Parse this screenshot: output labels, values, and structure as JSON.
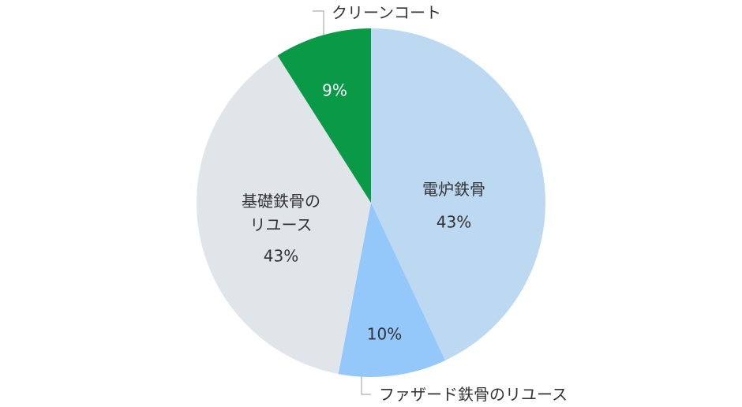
{
  "chart_data": {
    "type": "pie",
    "categories": [
      "電炉鉄骨",
      "ファザード鉄骨のリユース",
      "基礎鉄骨のリユース",
      "クリーンコート"
    ],
    "values": [
      43,
      10,
      43,
      9
    ],
    "value_labels": [
      "43%",
      "10%",
      "43%",
      "9%"
    ],
    "colors": [
      "#bdd9f2",
      "#94c8fb",
      "#e0e5ea",
      "#0a9a47"
    ]
  }
}
